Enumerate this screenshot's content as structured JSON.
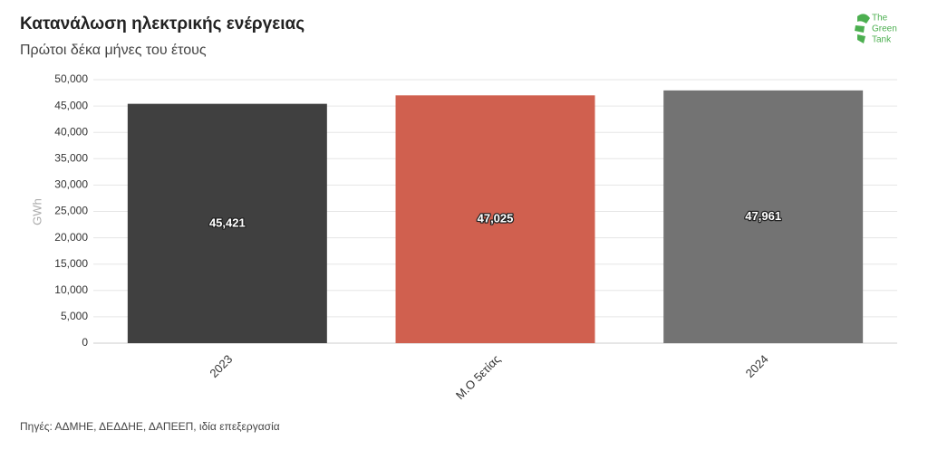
{
  "chart_data": {
    "type": "bar",
    "title": "Κατανάλωση ηλεκτρικής ενέργειας",
    "subtitle": "Πρώτοι δέκα μήνες του έτους",
    "y_label": "GWh",
    "source": "Πηγές: ΑΔΜΗΕ, ΔΕΔΔΗΕ, ΔΑΠΕΕΠ, ιδία επεξεργασία",
    "logo": [
      "The",
      "Green",
      "Tank"
    ],
    "categories": [
      "2023",
      "Μ.Ο 5ετίας",
      "2024"
    ],
    "values": [
      45421,
      47025,
      47961
    ],
    "value_labels": [
      "45,421",
      "47,025",
      "47,961"
    ],
    "colors": [
      "#404040",
      "#d0604f",
      "#737373"
    ],
    "ylim": [
      0,
      50000
    ],
    "yticks": [
      0,
      {
        "value": 5000,
        "label": "5,000"
      },
      {
        "value": 10000,
        "label": "10,000"
      },
      {
        "value": 15000,
        "label": "15,000"
      },
      {
        "value": 20000,
        "label": "20,000"
      },
      {
        "value": 25000,
        "label": "25,000"
      },
      {
        "value": 30000,
        "label": "30,000"
      },
      {
        "value": 35000,
        "label": "35,000"
      },
      {
        "value": 40000,
        "label": "40,000"
      },
      {
        "value": 45000,
        "label": "45,000"
      },
      {
        "value": 50000,
        "label": "50,000"
      }
    ],
    "grid": true
  }
}
